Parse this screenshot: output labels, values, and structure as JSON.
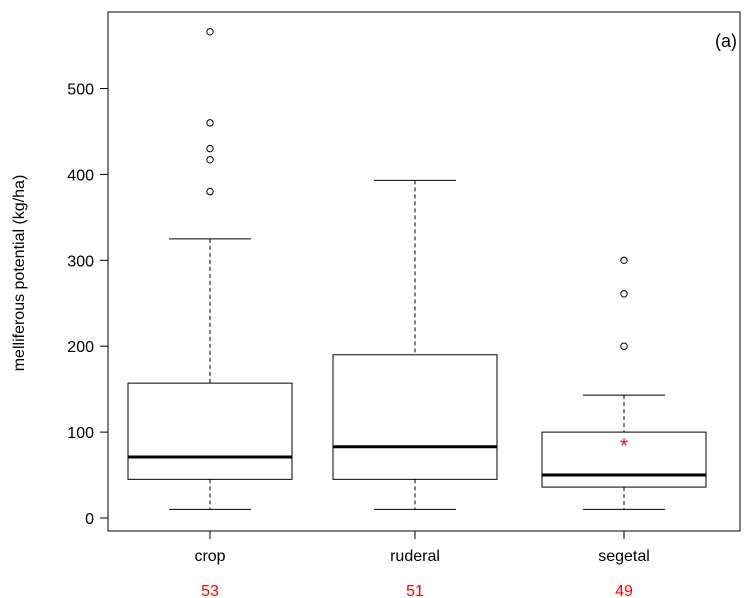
{
  "chart_data": {
    "type": "boxplot",
    "panel_label": "(a)",
    "ylabel": "melliferous potential (kg/ha)",
    "ylim": [
      0,
      575
    ],
    "yticks": [
      0,
      100,
      200,
      300,
      400,
      500
    ],
    "categories": [
      "crop",
      "ruderal",
      "segetal"
    ],
    "counts": [
      "53",
      "51",
      "49"
    ],
    "count_color": "#ff0000",
    "boxes": [
      {
        "category": "crop",
        "whisker_low": 10,
        "q1": 45,
        "median": 71,
        "q3": 157,
        "whisker_high": 325,
        "outliers": [
          380,
          417,
          430,
          460,
          566
        ]
      },
      {
        "category": "ruderal",
        "whisker_low": 10,
        "q1": 45,
        "median": 83,
        "q3": 190,
        "whisker_high": 393,
        "outliers": []
      },
      {
        "category": "segetal",
        "whisker_low": 10,
        "q1": 36,
        "median": 50,
        "q3": 100,
        "whisker_high": 143,
        "outliers": [
          200,
          261,
          300
        ]
      }
    ],
    "markers": [
      {
        "category": "segetal",
        "symbol": "*",
        "value": 88,
        "color": "#ff0000"
      }
    ],
    "grid": false
  }
}
